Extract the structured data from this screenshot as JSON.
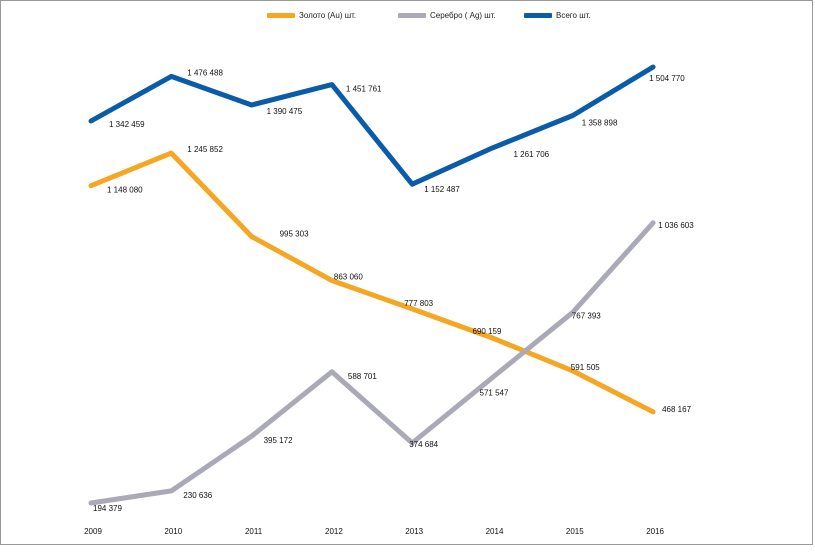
{
  "chart_data": {
    "type": "line",
    "title": "",
    "xlabel": "",
    "ylabel": "",
    "categories": [
      "2009",
      "2010",
      "2011",
      "2012",
      "2013",
      "2014",
      "2015",
      "2016"
    ],
    "ylim": [
      150000,
      1550000
    ],
    "grid": false,
    "legend_position": "top-center",
    "series": [
      {
        "name": "Золото (Au)   шт.",
        "color": "#F5A623",
        "values": [
          1148080,
          1245852,
          995303,
          863060,
          777803,
          690159,
          591505,
          468167
        ],
        "labels": [
          "1 148 080",
          "1 245 852",
          "995 303",
          "863 060",
          "777 803",
          "690 159",
          "591 505",
          "468 167"
        ]
      },
      {
        "name": "Серебро ( Ag)   шт.",
        "color": "#A9A9B8",
        "values": [
          194379,
          230636,
          395172,
          588701,
          374684,
          571547,
          767393,
          1036603
        ],
        "labels": [
          "194 379",
          "230 636",
          "395 172",
          "588 701",
          "374 684",
          "571 547",
          "767 393",
          "1 036 603"
        ]
      },
      {
        "name": "Всего шт.",
        "color": "#0B5CA8",
        "values": [
          1342459,
          1476488,
          1390475,
          1451761,
          1152487,
          1261706,
          1358898,
          1504770
        ],
        "labels": [
          "1 342 459",
          "1 476 488",
          "1 390 475",
          "1 451 761",
          "1 152 487",
          "1 261 706",
          "1 358 898",
          "1 504 770"
        ]
      }
    ]
  }
}
